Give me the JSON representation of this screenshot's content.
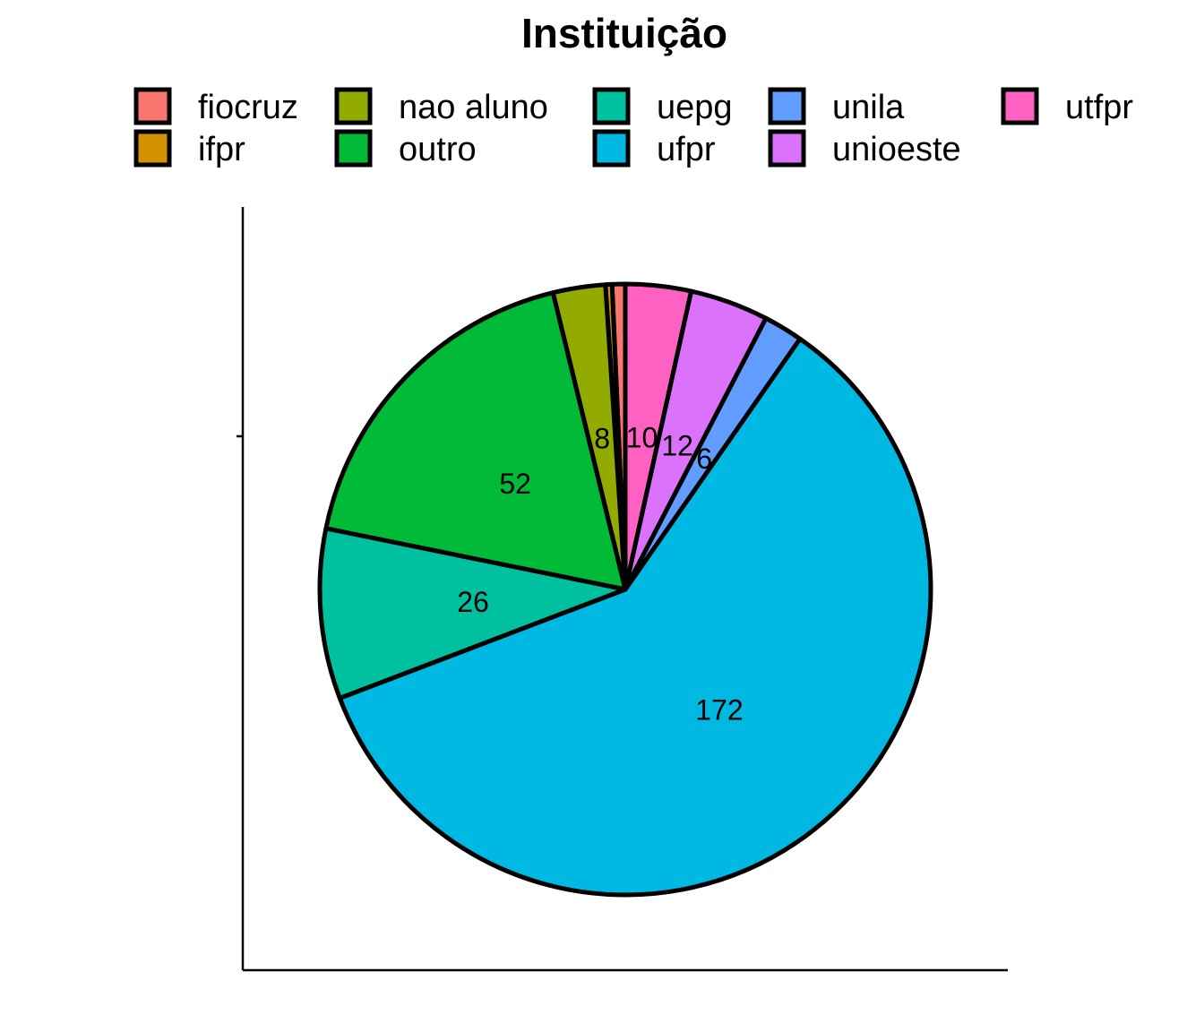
{
  "chart_data": {
    "type": "pie",
    "title": "Instituição",
    "categories": [
      "fiocruz",
      "ifpr",
      "nao aluno",
      "outro",
      "uepg",
      "ufpr",
      "unila",
      "unioeste",
      "utfpr"
    ],
    "values": [
      2,
      1,
      8,
      52,
      26,
      172,
      6,
      12,
      10
    ],
    "slice_labels": [
      "",
      "",
      "8",
      "52",
      "26",
      "172",
      "6",
      "12",
      "10"
    ],
    "colors": [
      "#F8766D",
      "#D39200",
      "#93AA00",
      "#00BA38",
      "#00C19F",
      "#00B9E3",
      "#619CFF",
      "#DB72FB",
      "#FF61C3"
    ],
    "legend_position": "top",
    "legend_order": [
      "fiocruz",
      "nao aluno",
      "uepg",
      "unila",
      "utfpr",
      "ifpr",
      "outro",
      "ufpr",
      "unioeste"
    ],
    "slice_outline": "#000000"
  }
}
